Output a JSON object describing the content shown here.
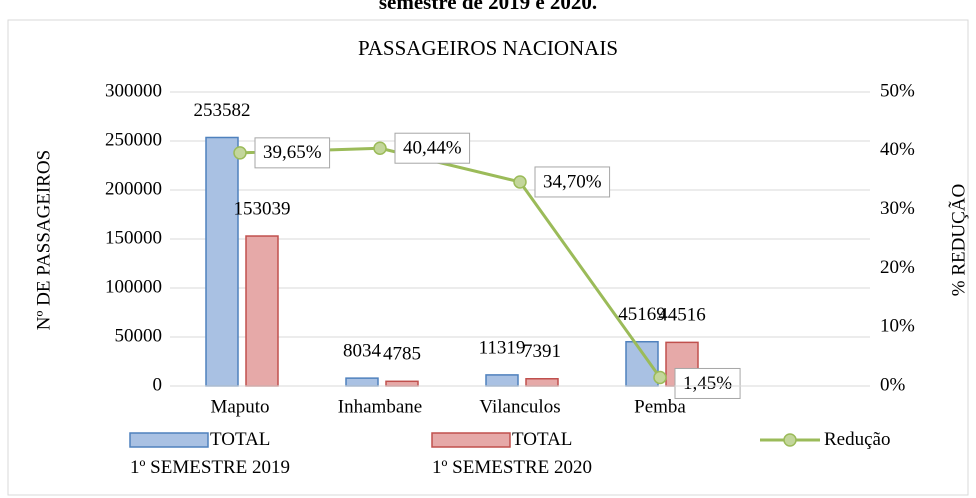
{
  "chart_data": {
    "type": "bar",
    "heading": "semestre de 2019 e 2020.",
    "title": "PASSAGEIROS NACIONAIS",
    "ylabel": "Nº DE PASSAGEIROS",
    "y2label": "% REDUÇÃO",
    "categories": [
      "Maputo",
      "Inhambane",
      "Vilanculos",
      "Pemba",
      null
    ],
    "ylim": [
      0,
      300000
    ],
    "yticks": [
      0,
      50000,
      100000,
      150000,
      200000,
      250000,
      300000
    ],
    "y2lim": [
      0,
      50
    ],
    "y2ticks": [
      {
        "value": 0,
        "label": "0%"
      },
      {
        "value": 10,
        "label": "10%"
      },
      {
        "value": 20,
        "label": "20%"
      },
      {
        "value": 30,
        "label": "30%"
      },
      {
        "value": 40,
        "label": "40%"
      },
      {
        "value": 50,
        "label": "50%"
      }
    ],
    "series": [
      {
        "name": "TOTAL\n1º SEMESTRE 2019",
        "type": "bar",
        "color": "#4f81bd",
        "fill": "#a9c1e3",
        "values": [
          253582,
          8034,
          11319,
          45169,
          null
        ]
      },
      {
        "name": "TOTAL\n1º SEMESTRE 2020",
        "type": "bar",
        "color": "#c0504d",
        "fill": "#e6a9a8",
        "values": [
          153039,
          4785,
          7391,
          44516,
          null
        ]
      },
      {
        "name": "Redução",
        "type": "line",
        "axis": "y2",
        "color": "#9bbb59",
        "fill": "#c3d69b",
        "values": [
          39.65,
          40.44,
          34.7,
          1.45,
          null
        ],
        "value_labels": [
          "39,65%",
          "40,44%",
          "34,70%",
          "1,45%",
          null
        ]
      }
    ]
  }
}
